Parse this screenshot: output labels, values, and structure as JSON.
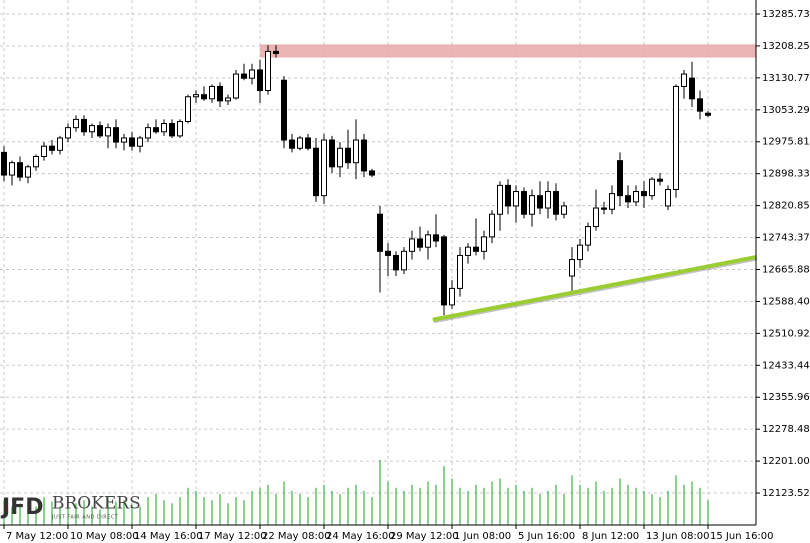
{
  "chart_data": {
    "type": "candlestick",
    "xlim": [
      -0.5,
      94
    ],
    "ylim": [
      12046,
      13319.7
    ],
    "grid": true,
    "bull_color": "#ffffff",
    "bear_color": "#000000",
    "volume_color": "#3cb043",
    "xticks": [
      {
        "value": 0,
        "label": "7 May 12:00"
      },
      {
        "value": 8,
        "label": "10 May 08:00"
      },
      {
        "value": 16,
        "label": "14 May 16:00"
      },
      {
        "value": 24,
        "label": "17 May 12:00"
      },
      {
        "value": 32,
        "label": "22 May 08:00"
      },
      {
        "value": 40,
        "label": "24 May 16:00"
      },
      {
        "value": 48,
        "label": "29 May 12:00"
      },
      {
        "value": 56,
        "label": "1 Jun 08:00"
      },
      {
        "value": 64,
        "label": "5 Jun 16:00"
      },
      {
        "value": 72,
        "label": "8 Jun 12:00"
      },
      {
        "value": 80,
        "label": "13 Jun 08:00"
      },
      {
        "value": 88,
        "label": "15 Jun 16:00"
      }
    ],
    "yticks": [
      13285.73,
      13208.25,
      13130.77,
      13053.29,
      12975.81,
      12898.33,
      12820.85,
      12743.37,
      12665.88,
      {
        "value": 12588.4,
        "label": "12588.40"
      },
      12510.92,
      12433.44,
      12355.96,
      12278.48,
      {
        "value": 12201,
        "label": "12201.00"
      },
      12123.52
    ],
    "ohlc": [
      [
        12950,
        12965,
        12880,
        12895
      ],
      [
        12895,
        12930,
        12870,
        12925
      ],
      [
        12925,
        12940,
        12880,
        12890
      ],
      [
        12890,
        12920,
        12875,
        12915
      ],
      [
        12915,
        12945,
        12905,
        12940
      ],
      [
        12940,
        12975,
        12930,
        12965
      ],
      [
        12965,
        12980,
        12945,
        12955
      ],
      [
        12955,
        12990,
        12945,
        12985
      ],
      [
        12985,
        13020,
        12975,
        13010
      ],
      [
        13010,
        13040,
        13000,
        13030
      ],
      [
        13030,
        13040,
        12990,
        13000
      ],
      [
        13000,
        13020,
        12985,
        13015
      ],
      [
        13015,
        13025,
        12985,
        12990
      ],
      [
        12990,
        13020,
        12960,
        13010
      ],
      [
        13010,
        13030,
        12960,
        12975
      ],
      [
        12975,
        12995,
        12955,
        12985
      ],
      [
        12985,
        13000,
        12955,
        12965
      ],
      [
        12965,
        12990,
        12950,
        12985
      ],
      [
        12985,
        13020,
        12975,
        13010
      ],
      [
        13010,
        13030,
        12995,
        13000
      ],
      [
        13000,
        13030,
        12990,
        13020
      ],
      [
        13020,
        13030,
        12985,
        12990
      ],
      [
        12990,
        13030,
        12985,
        13025
      ],
      [
        13025,
        13090,
        13020,
        13085
      ],
      [
        13085,
        13100,
        13070,
        13090
      ],
      [
        13090,
        13110,
        13075,
        13080
      ],
      [
        13080,
        13115,
        13070,
        13110
      ],
      [
        13110,
        13120,
        13060,
        13075
      ],
      [
        13075,
        13090,
        13065,
        13082
      ],
      [
        13082,
        13150,
        13078,
        13140
      ],
      [
        13140,
        13165,
        13125,
        13130
      ],
      [
        13130,
        13165,
        13115,
        13150
      ],
      [
        13150,
        13175,
        13070,
        13100
      ],
      [
        13100,
        13210,
        13090,
        13195
      ],
      [
        13195,
        13210,
        13180,
        13190
      ],
      [
        13125,
        13135,
        12960,
        12980
      ],
      [
        12980,
        12995,
        12950,
        12960
      ],
      [
        12960,
        12990,
        12955,
        12985
      ],
      [
        12985,
        12995,
        12955,
        12960
      ],
      [
        12960,
        12985,
        12830,
        12845
      ],
      [
        12845,
        12995,
        12825,
        12980
      ],
      [
        12980,
        12990,
        12900,
        12915
      ],
      [
        12915,
        12975,
        12890,
        12960
      ],
      [
        12960,
        13005,
        12910,
        12925
      ],
      [
        12925,
        13030,
        12885,
        12980
      ],
      [
        12980,
        12995,
        12890,
        12905
      ],
      [
        12905,
        12910,
        12890,
        12895
      ],
      [
        12800,
        12820,
        12610,
        12710
      ],
      [
        12710,
        12730,
        12650,
        12700
      ],
      [
        12700,
        12710,
        12650,
        12665
      ],
      [
        12665,
        12720,
        12655,
        12710
      ],
      [
        12710,
        12760,
        12690,
        12740
      ],
      [
        12740,
        12770,
        12710,
        12720
      ],
      [
        12720,
        12760,
        12690,
        12750
      ],
      [
        12750,
        12800,
        12720,
        12735
      ],
      [
        12745,
        12750,
        12555,
        12580
      ],
      [
        12580,
        12640,
        12570,
        12620
      ],
      [
        12620,
        12720,
        12600,
        12700
      ],
      [
        12700,
        12730,
        12680,
        12720
      ],
      [
        12720,
        12790,
        12700,
        12710
      ],
      [
        12710,
        12760,
        12690,
        12745
      ],
      [
        12745,
        12810,
        12730,
        12800
      ],
      [
        12800,
        12880,
        12760,
        12870
      ],
      [
        12870,
        12885,
        12800,
        12820
      ],
      [
        12820,
        12870,
        12780,
        12855
      ],
      [
        12855,
        12865,
        12790,
        12800
      ],
      [
        12800,
        12860,
        12770,
        12845
      ],
      [
        12845,
        12880,
        12800,
        12815
      ],
      [
        12815,
        12880,
        12790,
        12855
      ],
      [
        12855,
        12875,
        12785,
        12800
      ],
      [
        12800,
        12830,
        12790,
        12820
      ],
      [
        12650,
        12720,
        12610,
        12690
      ],
      [
        12690,
        12740,
        12670,
        12725
      ],
      [
        12725,
        12780,
        12710,
        12770
      ],
      [
        12770,
        12860,
        12760,
        12815
      ],
      [
        12815,
        12830,
        12800,
        12812
      ],
      [
        12812,
        12870,
        12800,
        12850
      ],
      [
        12930,
        12950,
        12820,
        12845
      ],
      [
        12845,
        12870,
        12815,
        12830
      ],
      [
        12830,
        12870,
        12820,
        12855
      ],
      [
        12855,
        12880,
        12815,
        12845
      ],
      [
        12845,
        12890,
        12835,
        12885
      ],
      [
        12885,
        12900,
        12870,
        12880
      ],
      [
        12820,
        12870,
        12810,
        12860
      ],
      [
        12860,
        13115,
        12840,
        13110
      ],
      [
        13110,
        13150,
        13080,
        13140
      ],
      [
        13130,
        13170,
        13060,
        13080
      ],
      [
        13080,
        13100,
        13030,
        13050
      ],
      [
        13045,
        13050,
        13035,
        13040
      ]
    ],
    "volumes": [
      40,
      30,
      35,
      25,
      30,
      45,
      38,
      30,
      42,
      35,
      40,
      30,
      25,
      45,
      38,
      40,
      35,
      30,
      45,
      50,
      40,
      35,
      45,
      60,
      55,
      45,
      40,
      50,
      35,
      45,
      40,
      55,
      60,
      65,
      50,
      70,
      55,
      50,
      45,
      60,
      65,
      55,
      50,
      60,
      65,
      55,
      45,
      105,
      70,
      60,
      55,
      65,
      60,
      70,
      65,
      95,
      75,
      60,
      55,
      65,
      60,
      70,
      75,
      60,
      65,
      55,
      60,
      50,
      55,
      65,
      50,
      80,
      65,
      60,
      70,
      55,
      60,
      75,
      65,
      60,
      55,
      50,
      45,
      55,
      80,
      65,
      70,
      60,
      40
    ],
    "zone": {
      "from": 13180,
      "to": 13212,
      "start": 32,
      "end": 94,
      "color": "#e8a8a8"
    },
    "trend_line": {
      "x": [
        53.6,
        94
      ],
      "y": [
        12544,
        12696
      ],
      "color": "#9acd32"
    }
  },
  "logo": {
    "brand": "JFD",
    "name": "BROKERS",
    "tagline": "JUST FAIR AND DIRECT"
  }
}
